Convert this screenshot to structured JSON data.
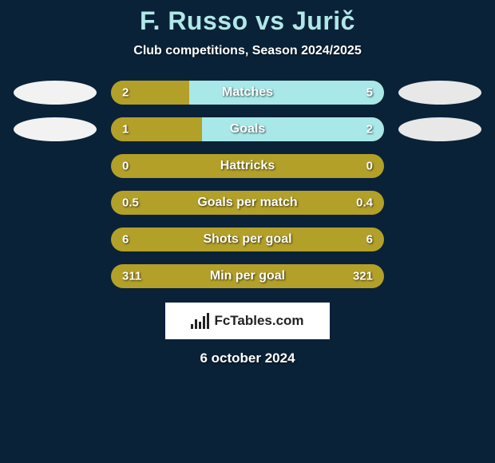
{
  "title": "F. Russo vs Jurič",
  "subtitle": "Club competitions, Season 2024/2025",
  "colors": {
    "background": "#0a2238",
    "title_color": "#b0e8e8",
    "player1_fill": "#b3a028",
    "player2_fill": "#a8e8e8",
    "oval_left": "#f2f2f2",
    "oval_right": "#e8e8e8",
    "text": "#ffffff"
  },
  "stats": [
    {
      "label": "Matches",
      "p1_value": "2",
      "p2_value": "5",
      "p1_pct": 28.6,
      "p2_pct": 71.4,
      "show_ovals": true
    },
    {
      "label": "Goals",
      "p1_value": "1",
      "p2_value": "2",
      "p1_pct": 33.3,
      "p2_pct": 66.7,
      "show_ovals": true
    },
    {
      "label": "Hattricks",
      "p1_value": "0",
      "p2_value": "0",
      "p1_pct": 0,
      "p2_pct": 0,
      "show_ovals": false
    },
    {
      "label": "Goals per match",
      "p1_value": "0.5",
      "p2_value": "0.4",
      "p1_pct": 0,
      "p2_pct": 0,
      "show_ovals": false
    },
    {
      "label": "Shots per goal",
      "p1_value": "6",
      "p2_value": "6",
      "p1_pct": 0,
      "p2_pct": 0,
      "show_ovals": false
    },
    {
      "label": "Min per goal",
      "p1_value": "311",
      "p2_value": "321",
      "p1_pct": 0,
      "p2_pct": 0,
      "show_ovals": false
    }
  ],
  "footer": {
    "brand": "FcTables.com",
    "date": "6 october 2024"
  }
}
